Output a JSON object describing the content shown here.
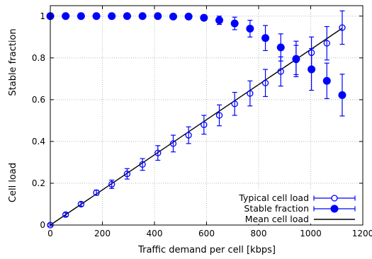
{
  "chart_data": {
    "type": "scatter",
    "xlabel": "Traffic demand per cell [kbps]",
    "ylabel_upper": "Stable fraction",
    "ylabel_lower": "Cell load",
    "xlim": [
      0,
      1200
    ],
    "ylim": [
      0,
      1.05
    ],
    "xticks": [
      0,
      200,
      400,
      600,
      800,
      1000,
      1200
    ],
    "yticks": [
      0,
      0.2,
      0.4,
      0.6,
      0.8,
      1
    ],
    "xtick_labels": [
      "0",
      "200",
      "400",
      "600",
      "800",
      "1000",
      "1200"
    ],
    "ytick_labels": [
      "0",
      "0.2",
      "0.4",
      "0.6",
      "0.8",
      "1"
    ],
    "grid": true,
    "legend_position": "bottom-right",
    "series": [
      {
        "name": "Typical cell load",
        "style": "open-circle-errorbars",
        "color": "#0000ff",
        "x": [
          0,
          59,
          118,
          177,
          236,
          295,
          354,
          413,
          472,
          531,
          590,
          649,
          708,
          767,
          826,
          885,
          944,
          1003,
          1062,
          1121
        ],
        "y": [
          0.0,
          0.05,
          0.1,
          0.155,
          0.195,
          0.245,
          0.29,
          0.345,
          0.39,
          0.43,
          0.48,
          0.525,
          0.58,
          0.63,
          0.68,
          0.735,
          0.79,
          0.825,
          0.87,
          0.945
        ],
        "err": [
          0.005,
          0.008,
          0.01,
          0.012,
          0.02,
          0.025,
          0.028,
          0.035,
          0.04,
          0.04,
          0.045,
          0.05,
          0.055,
          0.06,
          0.065,
          0.07,
          0.07,
          0.075,
          0.08,
          0.08
        ]
      },
      {
        "name": "Stable fraction",
        "style": "filled-circle-errorbars",
        "color": "#0000ff",
        "x": [
          0,
          59,
          118,
          177,
          236,
          295,
          354,
          413,
          472,
          531,
          590,
          649,
          708,
          767,
          826,
          885,
          944,
          1003,
          1062,
          1121
        ],
        "y": [
          1.0,
          1.0,
          1.0,
          1.0,
          1.0,
          1.0,
          1.0,
          1.0,
          0.998,
          0.998,
          0.992,
          0.98,
          0.965,
          0.94,
          0.895,
          0.85,
          0.795,
          0.745,
          0.69,
          0.622
        ],
        "err": [
          0,
          0,
          0,
          0,
          0,
          0,
          0,
          0,
          0.003,
          0.003,
          0.008,
          0.02,
          0.03,
          0.04,
          0.06,
          0.065,
          0.085,
          0.1,
          0.085,
          0.1
        ]
      },
      {
        "name": "Mean cell load",
        "style": "line",
        "color": "#000000",
        "x": [
          0,
          1121
        ],
        "y": [
          0.0,
          0.942
        ]
      }
    ]
  }
}
